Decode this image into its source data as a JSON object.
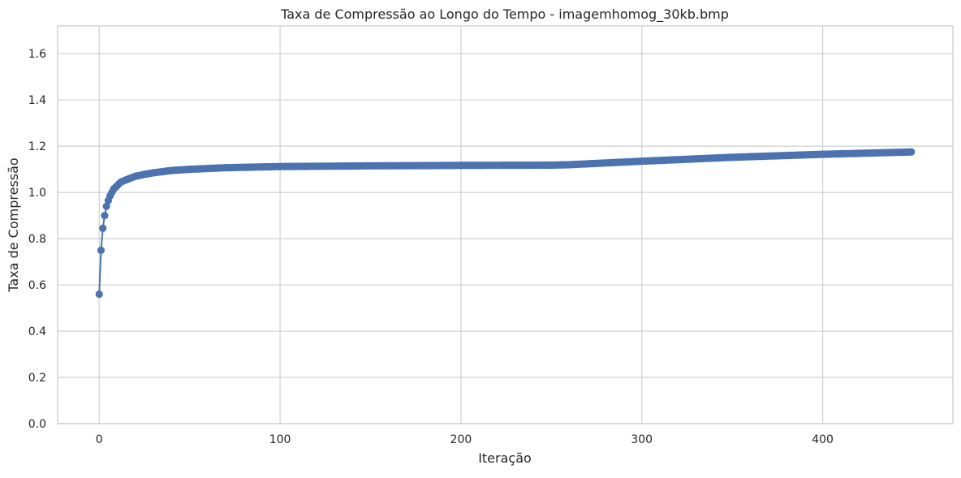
{
  "chart_data": {
    "type": "line",
    "title": "Taxa de Compressão ao Longo do Tempo - imagemhomog_30kb.bmp",
    "xlabel": "Iteração",
    "ylabel": "Taxa de Compressão",
    "xlim": [
      -23,
      472
    ],
    "ylim": [
      0,
      1.72
    ],
    "xticks": [
      0,
      100,
      200,
      300,
      400
    ],
    "yticks": [
      0.0,
      0.2,
      0.4,
      0.6,
      0.8,
      1.0,
      1.2,
      1.4,
      1.6
    ],
    "grid": true,
    "color": "#4c72b0",
    "marker": "circle",
    "series": [
      {
        "x_start": 0,
        "x_end": 449,
        "anchors": [
          [
            0,
            0.56
          ],
          [
            1,
            0.75
          ],
          [
            2,
            0.845
          ],
          [
            3,
            0.9
          ],
          [
            4,
            0.94
          ],
          [
            5,
            0.965
          ],
          [
            6,
            0.985
          ],
          [
            7,
            1.0
          ],
          [
            8,
            1.015
          ],
          [
            10,
            1.03
          ],
          [
            12,
            1.045
          ],
          [
            15,
            1.055
          ],
          [
            20,
            1.07
          ],
          [
            25,
            1.078
          ],
          [
            30,
            1.085
          ],
          [
            40,
            1.095
          ],
          [
            50,
            1.1
          ],
          [
            70,
            1.107
          ],
          [
            100,
            1.112
          ],
          [
            150,
            1.115
          ],
          [
            200,
            1.117
          ],
          [
            250,
            1.118
          ],
          [
            260,
            1.12
          ],
          [
            300,
            1.135
          ],
          [
            350,
            1.152
          ],
          [
            400,
            1.165
          ],
          [
            449,
            1.175
          ]
        ]
      }
    ]
  }
}
